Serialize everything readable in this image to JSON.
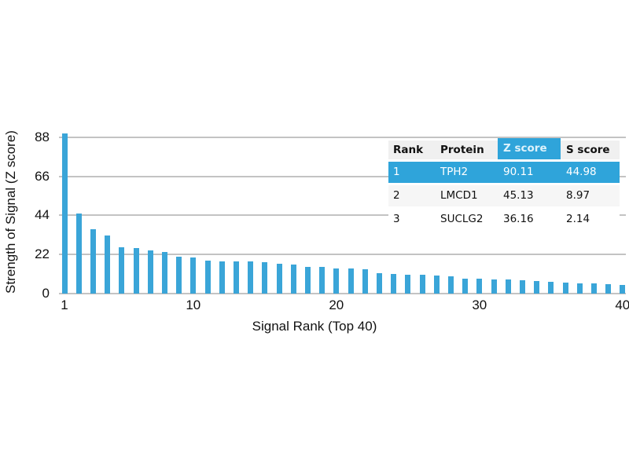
{
  "colors": {
    "accent": "#2fa4da",
    "bar": "#3aa5d8",
    "grid": "#c3c3c3",
    "header_bg": "#f0f0f0",
    "row_alt_bg": "#f6f6f6",
    "text": "#111111",
    "z_header_text": "#ddf2fb",
    "highlight_row_text": "#ffffff"
  },
  "chart_data": {
    "type": "bar",
    "title": "",
    "xlabel": "Signal Rank (Top 40)",
    "ylabel": "Strength of Signal (Z score)",
    "x": [
      1,
      2,
      3,
      4,
      5,
      6,
      7,
      8,
      9,
      10,
      11,
      12,
      13,
      14,
      15,
      16,
      17,
      18,
      19,
      20,
      21,
      22,
      23,
      24,
      25,
      26,
      27,
      28,
      29,
      30,
      31,
      32,
      33,
      34,
      35,
      36,
      37,
      38,
      39,
      40
    ],
    "values": [
      90.11,
      45.13,
      36.16,
      32.7,
      26.0,
      25.6,
      24.3,
      23.6,
      20.7,
      20.3,
      18.6,
      18.3,
      18.1,
      18.0,
      17.7,
      16.7,
      16.3,
      15.1,
      14.9,
      14.2,
      14.0,
      13.9,
      11.5,
      11.0,
      10.7,
      10.4,
      10.2,
      9.8,
      8.6,
      8.5,
      8.1,
      7.8,
      7.5,
      7.1,
      6.7,
      6.3,
      5.8,
      5.6,
      5.1,
      4.9
    ],
    "yticks": [
      0,
      22,
      44,
      66,
      88
    ],
    "xticks": [
      1,
      10,
      20,
      30,
      40
    ],
    "ylim": [
      0,
      90.11
    ],
    "grid": true,
    "legend": false
  },
  "table": {
    "headers": [
      "Rank",
      "Protein",
      "Z score",
      "S score"
    ],
    "highlight_column": "Z score",
    "rows": [
      {
        "rank": "1",
        "protein": "TPH2",
        "z": "90.11",
        "s": "44.98",
        "highlighted": true
      },
      {
        "rank": "2",
        "protein": "LMCD1",
        "z": "45.13",
        "s": "8.97",
        "highlighted": false
      },
      {
        "rank": "3",
        "protein": "SUCLG2",
        "z": "36.16",
        "s": "2.14",
        "highlighted": false
      }
    ]
  }
}
